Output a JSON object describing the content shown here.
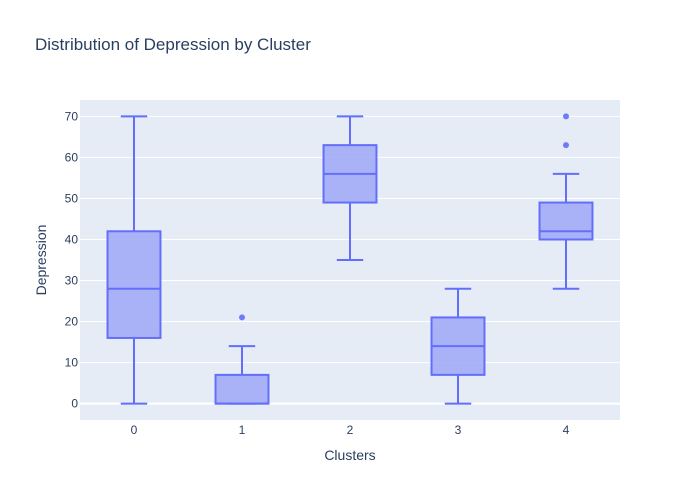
{
  "chart_data": {
    "type": "box",
    "title": "Distribution of Depression by Cluster",
    "xlabel": "Clusters",
    "ylabel": "Depression",
    "categories": [
      "0",
      "1",
      "2",
      "3",
      "4"
    ],
    "ylim": [
      -4,
      74
    ],
    "yticks": [
      0,
      10,
      20,
      30,
      40,
      50,
      60,
      70
    ],
    "grid": true,
    "legend": "none",
    "colors": {
      "plot_bg": "#e5ecf6",
      "grid": "#ffffff",
      "box_fill": "#a3acf7",
      "box_line": "#636efa",
      "text": "#2a3f5f"
    },
    "boxes": [
      {
        "category": "0",
        "min": 0,
        "q1": 16,
        "median": 28,
        "q3": 42,
        "max": 70,
        "outliers": []
      },
      {
        "category": "1",
        "min": 0,
        "q1": 0,
        "median": 0,
        "q3": 7,
        "max": 14,
        "outliers": [
          21
        ]
      },
      {
        "category": "2",
        "min": 35,
        "q1": 49,
        "median": 56,
        "q3": 63,
        "max": 70,
        "outliers": []
      },
      {
        "category": "3",
        "min": 0,
        "q1": 7,
        "median": 14,
        "q3": 21,
        "max": 28,
        "outliers": []
      },
      {
        "category": "4",
        "min": 28,
        "q1": 40,
        "median": 42,
        "q3": 49,
        "max": 56,
        "outliers": [
          63,
          70
        ]
      }
    ]
  }
}
